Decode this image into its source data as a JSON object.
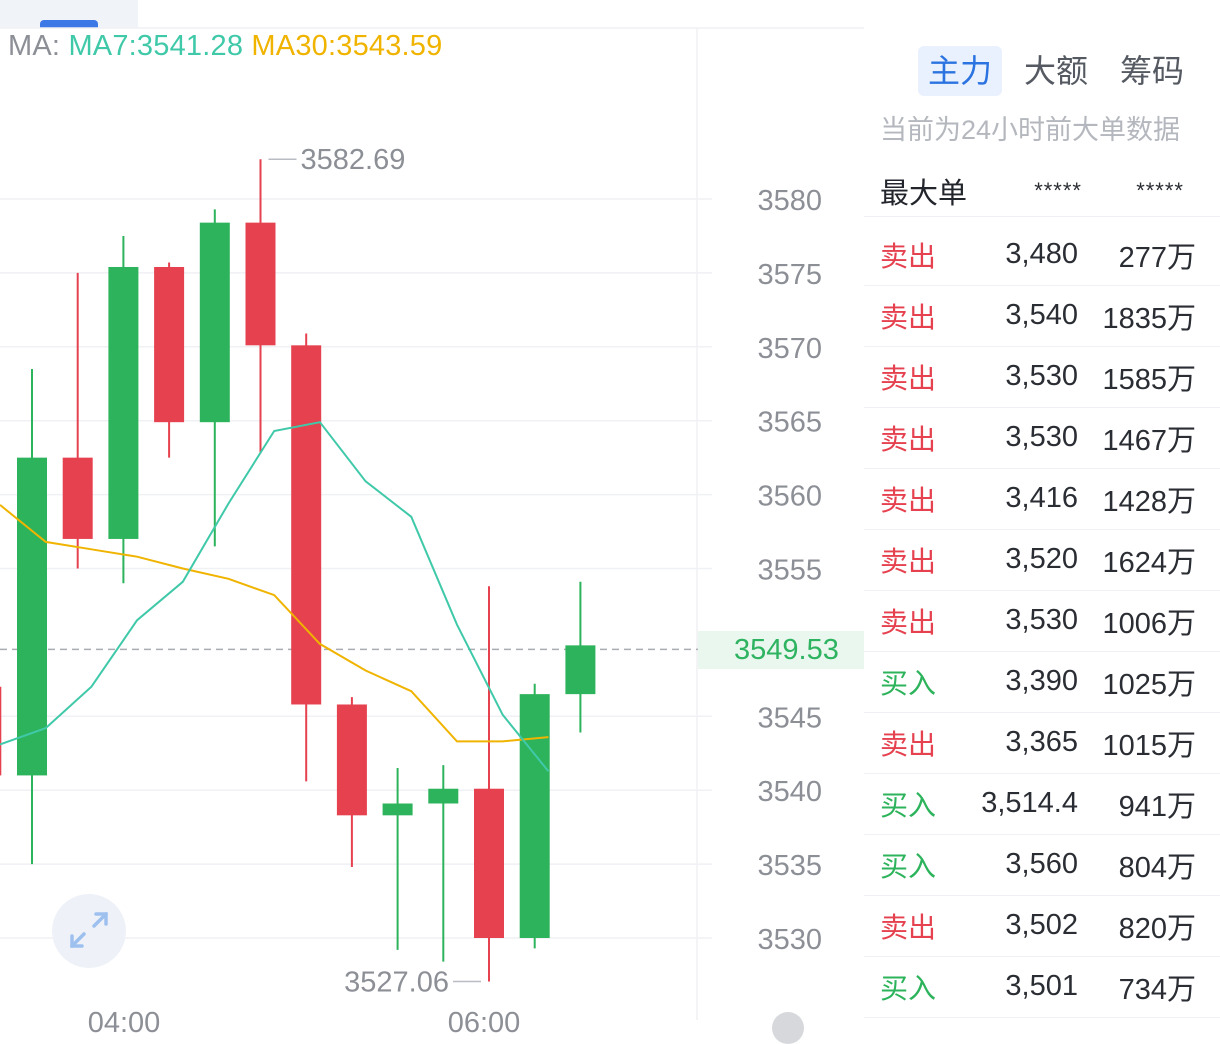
{
  "colors": {
    "up": "#2db35b",
    "down": "#e5414f",
    "ma7": "#40c9a9",
    "ma30": "#f0b400",
    "accent": "#2a73e0",
    "grid": "#f0f1f4",
    "axis_text": "#8c8f96"
  },
  "ma_legend": {
    "prefix": "MA:",
    "ma7": "MA7:3541.28",
    "ma30": "MA30:3543.59"
  },
  "current_price": "3549.53",
  "chart_data": {
    "type": "candlestick",
    "y_ticks": [
      3580,
      3575,
      3570,
      3565,
      3560,
      3555,
      3545,
      3540,
      3535,
      3530
    ],
    "ylim": [
      3526.5,
      3588
    ],
    "candles": [
      {
        "open": 3547,
        "high": 3547,
        "low": 3541,
        "close": 3541,
        "up": false
      },
      {
        "open": 3541,
        "high": 3568.5,
        "low": 3535,
        "close": 3562.5,
        "up": true
      },
      {
        "open": 3562.5,
        "high": 3575,
        "low": 3555,
        "close": 3557,
        "up": false
      },
      {
        "open": 3557,
        "high": 3577.5,
        "low": 3554,
        "close": 3575.4,
        "up": true
      },
      {
        "open": 3575.4,
        "high": 3575.7,
        "low": 3562.5,
        "close": 3564.9,
        "up": false
      },
      {
        "open": 3564.9,
        "high": 3579.3,
        "low": 3556.5,
        "close": 3578.4,
        "up": true
      },
      {
        "open": 3578.4,
        "high": 3582.69,
        "low": 3562.8,
        "close": 3570.1,
        "up": false
      },
      {
        "open": 3570.1,
        "high": 3570.9,
        "low": 3540.6,
        "close": 3545.8,
        "up": false
      },
      {
        "open": 3545.8,
        "high": 3546.3,
        "low": 3534.8,
        "close": 3538.3,
        "up": false
      },
      {
        "open": 3538.3,
        "high": 3541.5,
        "low": 3529.2,
        "close": 3539.1,
        "up": true
      },
      {
        "open": 3539.1,
        "high": 3541.7,
        "low": 3528.4,
        "close": 3540.1,
        "up": true
      },
      {
        "open": 3540.1,
        "high": 3553.8,
        "low": 3527.06,
        "close": 3530.0,
        "up": false
      },
      {
        "open": 3530.0,
        "high": 3547.2,
        "low": 3529.3,
        "close": 3546.5,
        "up": true
      },
      {
        "open": 3546.5,
        "high": 3554.1,
        "low": 3543.9,
        "close": 3549.8,
        "up": true
      }
    ],
    "ma7": [
      3543.1,
      3544.2,
      3547.0,
      3551.5,
      3554.1,
      3559.4,
      3564.3,
      3564.9,
      3560.9,
      3558.5,
      3551.2,
      3545.1,
      3541.28
    ],
    "ma30": [
      3559.3,
      3556.8,
      3556.3,
      3555.8,
      3555.0,
      3554.3,
      3553.2,
      3549.9,
      3548.1,
      3546.7,
      3543.3,
      3543.3,
      3543.59
    ],
    "annotations": {
      "high": "3582.69",
      "low": "3527.06"
    },
    "x_ticks": [
      "04:00",
      "06:00"
    ]
  },
  "panel": {
    "tabs": [
      "主力",
      "大额",
      "筹码"
    ],
    "active_tab": 0,
    "subtitle": "当前为24小时前大单数据",
    "header": {
      "label": "最大单",
      "price": "*****",
      "amount": "*****"
    },
    "rows": [
      {
        "side": "卖出",
        "price": "3,480",
        "amount": "277万"
      },
      {
        "side": "卖出",
        "price": "3,540",
        "amount": "1835万"
      },
      {
        "side": "卖出",
        "price": "3,530",
        "amount": "1585万"
      },
      {
        "side": "卖出",
        "price": "3,530",
        "amount": "1467万"
      },
      {
        "side": "卖出",
        "price": "3,416",
        "amount": "1428万"
      },
      {
        "side": "卖出",
        "price": "3,520",
        "amount": "1624万"
      },
      {
        "side": "卖出",
        "price": "3,530",
        "amount": "1006万"
      },
      {
        "side": "买入",
        "price": "3,390",
        "amount": "1025万"
      },
      {
        "side": "卖出",
        "price": "3,365",
        "amount": "1015万"
      },
      {
        "side": "买入",
        "price": "3,514.4",
        "amount": "941万"
      },
      {
        "side": "买入",
        "price": "3,560",
        "amount": "804万"
      },
      {
        "side": "卖出",
        "price": "3,502",
        "amount": "820万"
      },
      {
        "side": "买入",
        "price": "3,501",
        "amount": "734万"
      }
    ]
  }
}
